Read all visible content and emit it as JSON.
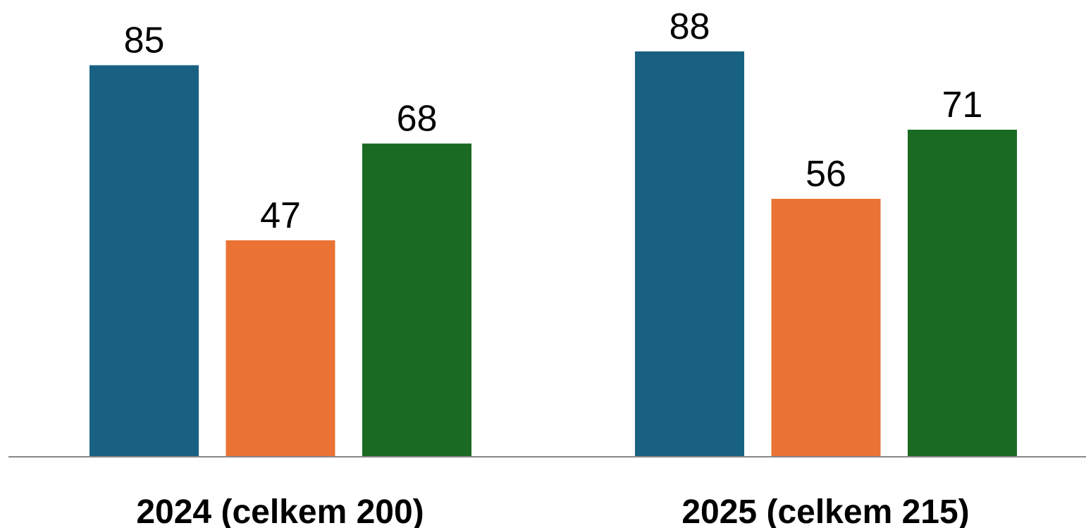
{
  "chart_data": {
    "type": "bar",
    "categories": [
      "2024 (celkem 200)",
      "2025 (celkem 215)"
    ],
    "series": [
      {
        "values": [
          85,
          88
        ]
      },
      {
        "values": [
          47,
          56
        ]
      },
      {
        "values": [
          68,
          71
        ]
      }
    ],
    "ylim": [
      0,
      100
    ],
    "grid": false,
    "legend": "none",
    "colors": [
      "#186183",
      "#E97234",
      "#1A6A23"
    ],
    "axis_color": "#888888"
  }
}
